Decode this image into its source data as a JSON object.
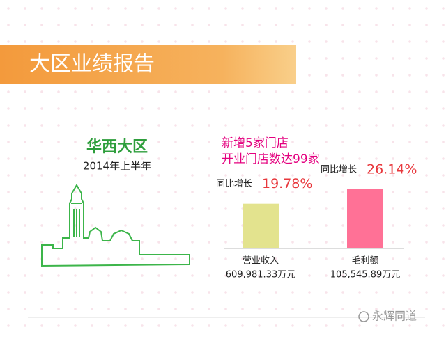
{
  "header": {
    "title": "大区业绩报告"
  },
  "region": {
    "name": "华西大区",
    "period": "2014年上半年"
  },
  "highlights": [
    "新增5家门店",
    "开业门店数达99家"
  ],
  "chart_data": {
    "type": "bar",
    "value_prefix": "同比增长",
    "categories": [
      "营业收入",
      "毛利额"
    ],
    "amounts": [
      "609,981.33万元",
      "105,545.89万元"
    ],
    "values": [
      19.78,
      26.14
    ],
    "value_labels": [
      "19.78%",
      "26.14%"
    ],
    "colors": [
      "#e3e38e",
      "#ff7196"
    ]
  },
  "watermark": "永辉同道"
}
